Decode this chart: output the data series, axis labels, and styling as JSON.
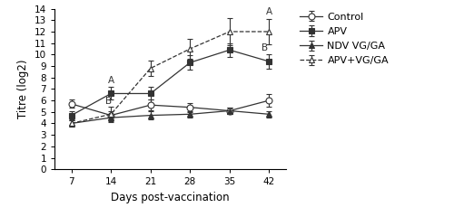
{
  "x": [
    7,
    14,
    21,
    28,
    35,
    42
  ],
  "control": {
    "y": [
      5.7,
      4.7,
      5.6,
      5.4,
      5.1,
      6.0
    ],
    "yerr": [
      0.35,
      0.35,
      0.45,
      0.4,
      0.25,
      0.55
    ]
  },
  "apv": {
    "y": [
      4.7,
      6.6,
      6.6,
      9.3,
      10.4,
      9.4
    ],
    "yerr": [
      0.35,
      0.55,
      0.55,
      0.65,
      0.6,
      0.65
    ]
  },
  "ndv": {
    "y": [
      4.0,
      4.5,
      4.7,
      4.8,
      5.1,
      4.8
    ],
    "yerr": [
      0.25,
      0.3,
      0.35,
      0.3,
      0.25,
      0.3
    ]
  },
  "apvvgga": {
    "y": [
      4.0,
      4.8,
      8.8,
      10.5,
      12.0,
      12.0
    ],
    "yerr": [
      0.3,
      0.65,
      0.7,
      0.9,
      1.2,
      1.1
    ]
  },
  "ylabel": "Titre (log2)",
  "xlabel": "Days post-vaccination",
  "ylim": [
    0,
    14
  ],
  "yticks": [
    0,
    1,
    2,
    3,
    4,
    5,
    6,
    7,
    8,
    9,
    10,
    11,
    12,
    13,
    14
  ],
  "line_color": "#333333",
  "legend_labels": [
    "Control",
    "APV",
    "NDV VG/GA",
    "APV+VG/GA"
  ]
}
